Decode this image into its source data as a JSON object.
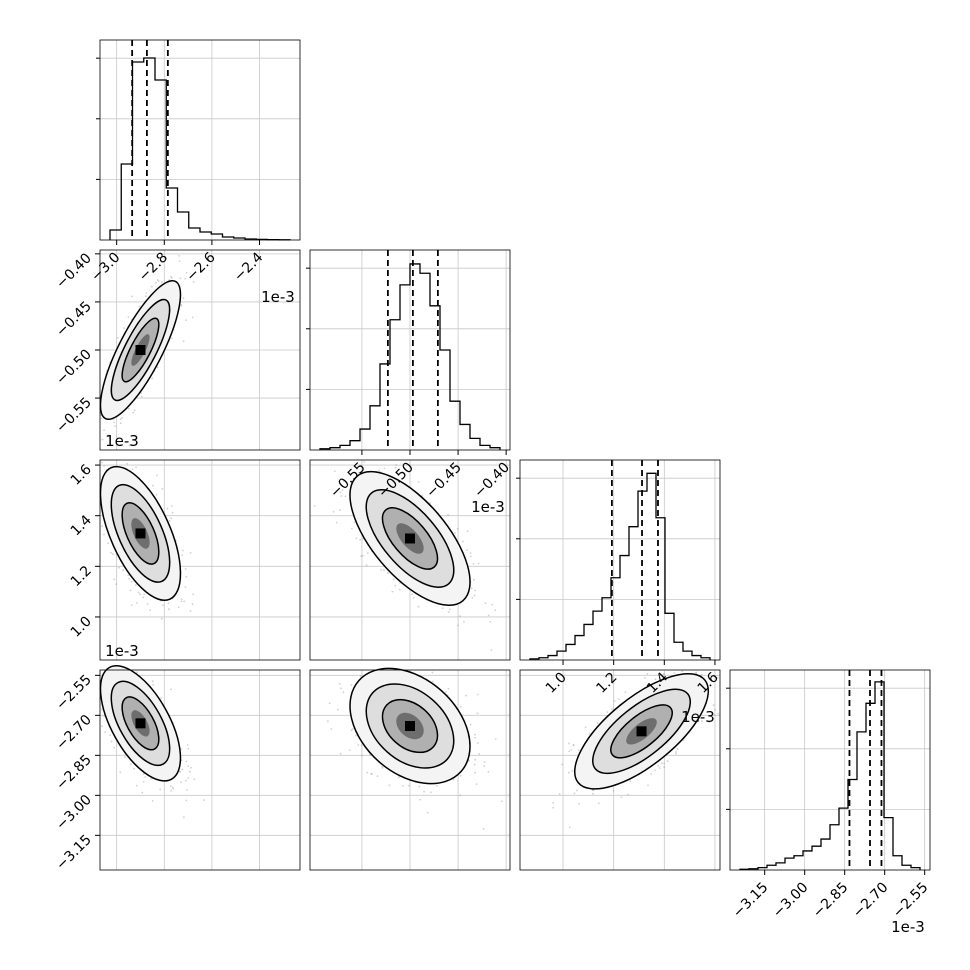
{
  "chart_data": {
    "type": "corner",
    "grid": true,
    "offset_label": "1e-3",
    "params": [
      {
        "range": [
          -3.07,
          -2.23
        ],
        "ticks": [
          -3.0,
          -2.8,
          -2.6,
          -2.4
        ],
        "tick_labels": [
          "−3.0",
          "−2.8",
          "−2.6",
          "−2.4"
        ],
        "quantiles": [
          -2.935,
          -2.873,
          -2.785
        ],
        "hist_bins": [
          5,
          38,
          89,
          91,
          80,
          26,
          14,
          6,
          4,
          3,
          1.5,
          1,
          0.5,
          0.3,
          0.2,
          0.1
        ],
        "hist_max": 100
      },
      {
        "range": [
          -0.604,
          -0.396
        ],
        "ticks": [
          -0.55,
          -0.5,
          -0.45,
          -0.4
        ],
        "tick_labels": [
          "−0.55",
          "−0.50",
          "−0.45",
          "−0.40"
        ],
        "quantiles": [
          -0.523,
          -0.497,
          -0.471
        ],
        "hist_bins": [
          0.5,
          1,
          2,
          4,
          9,
          19,
          37,
          56,
          71,
          80,
          76,
          62,
          43,
          21,
          11,
          5,
          2,
          1
        ],
        "hist_max": 86
      },
      {
        "range": [
          0.83,
          1.62
        ],
        "ticks": [
          1.0,
          1.2,
          1.4,
          1.6
        ],
        "tick_labels": [
          "1.0",
          "1.2",
          "1.4",
          "1.6"
        ],
        "quantiles": [
          1.193,
          1.312,
          1.375
        ],
        "hist_bins": [
          0.5,
          1,
          2,
          4,
          7,
          11,
          16,
          22,
          28,
          37,
          47,
          60,
          76,
          84,
          64,
          21,
          8,
          4,
          2,
          1
        ],
        "hist_max": 90
      },
      {
        "range": [
          -3.28,
          -2.53
        ],
        "ticks": [
          -3.15,
          -3.0,
          -2.85,
          -2.7,
          -2.55
        ],
        "tick_labels": [
          "−3.15",
          "−3.00",
          "−2.85",
          "−2.70",
          "−2.55"
        ],
        "quantiles": [
          -2.832,
          -2.755,
          -2.712
        ],
        "hist_bins": [
          0.3,
          0.5,
          1,
          2,
          3,
          5,
          6,
          8,
          10,
          13,
          19,
          26,
          38,
          58,
          70,
          79,
          22,
          6,
          2,
          1
        ],
        "hist_max": 84
      }
    ],
    "pairs": [
      {
        "x": 0,
        "y": 1,
        "center": [
          -2.9,
          -0.5
        ],
        "sd": [
          0.07,
          0.03
        ],
        "corr": 0.8
      },
      {
        "x": 0,
        "y": 2,
        "center": [
          -2.9,
          1.33
        ],
        "sd": [
          0.07,
          0.11
        ],
        "corr": -0.6
      },
      {
        "x": 1,
        "y": 2,
        "center": [
          -0.5,
          1.31
        ],
        "sd": [
          0.026,
          0.11
        ],
        "corr": -0.65
      },
      {
        "x": 0,
        "y": 3,
        "center": [
          -2.9,
          -2.73
        ],
        "sd": [
          0.07,
          0.09
        ],
        "corr": -0.6
      },
      {
        "x": 1,
        "y": 3,
        "center": [
          -0.5,
          -2.74
        ],
        "sd": [
          0.026,
          0.09
        ],
        "corr": -0.35
      },
      {
        "x": 2,
        "y": 3,
        "center": [
          1.31,
          -2.76
        ],
        "sd": [
          0.11,
          0.09
        ],
        "corr": 0.7
      }
    ]
  }
}
